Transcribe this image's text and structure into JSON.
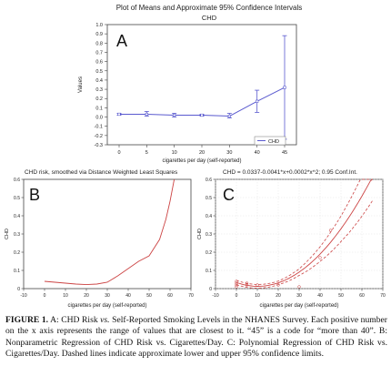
{
  "chart_data": [
    {
      "panel_label": "A",
      "type": "line",
      "title": "Plot of Means and Approximate 95% Confidence Intervals",
      "subtitle": "CHD",
      "xlabel": "cigarettes per day (self-reported)",
      "ylabel": "Values",
      "categories": [
        "0",
        "5",
        "10",
        "20",
        "30",
        "40",
        "45"
      ],
      "series": [
        {
          "name": "CHD",
          "values": [
            0.03,
            0.03,
            0.02,
            0.02,
            0.01,
            0.17,
            0.32
          ],
          "lower": [
            0.02,
            0.01,
            0.0,
            0.01,
            -0.01,
            0.05,
            -0.24
          ],
          "upper": [
            0.04,
            0.06,
            0.04,
            0.03,
            0.04,
            0.29,
            0.88
          ]
        }
      ],
      "ylim": [
        -0.3,
        1.0
      ],
      "yticks": [
        -0.3,
        -0.2,
        -0.1,
        0.0,
        0.1,
        0.2,
        0.3,
        0.4,
        0.5,
        0.6,
        0.7,
        0.8,
        0.9,
        1.0
      ],
      "ytick_labels": [
        "-0.3",
        "-0.2",
        "-0.1",
        "0.0",
        "0.1",
        "0.2",
        "0.3",
        "0.4",
        "0.5",
        "0.6",
        "0.7",
        "0.8",
        "0.9",
        "1.0"
      ],
      "legend": "bottom-right",
      "grid": false,
      "color": "#5a5acf"
    },
    {
      "panel_label": "B",
      "type": "line",
      "title": "CHD risk, smoothed via Distance Weighted Least Squares",
      "xlabel": "cigarettes per day (self-reported)",
      "ylabel": "CHD",
      "xlim": [
        -10,
        70
      ],
      "ylim": [
        0,
        0.6
      ],
      "xticks": [
        -10,
        0,
        10,
        20,
        30,
        40,
        50,
        60,
        70
      ],
      "yticks": [
        0,
        0.1,
        0.2,
        0.3,
        0.4,
        0.5,
        0.6
      ],
      "xtick_labels": [
        "-10",
        "0",
        "10",
        "20",
        "30",
        "40",
        "50",
        "60",
        "70"
      ],
      "ytick_labels": [
        "0",
        "0.1",
        "0.2",
        "0.3",
        "0.4",
        "0.5",
        "0.6"
      ],
      "grid": false,
      "color": "#cc4444",
      "series": [
        {
          "x": [
            0,
            5,
            10,
            15,
            20,
            25,
            30,
            35,
            40,
            45,
            50,
            55,
            58,
            60,
            62
          ],
          "y": [
            0.04,
            0.035,
            0.03,
            0.025,
            0.022,
            0.025,
            0.035,
            0.07,
            0.11,
            0.15,
            0.18,
            0.27,
            0.38,
            0.48,
            0.6
          ]
        }
      ]
    },
    {
      "panel_label": "C",
      "type": "line",
      "title": "CHD = 0.0337-0.0041*x+0.0002*x^2; 0.95 Conf.Int.",
      "xlabel": "cigarettes per day (self-reported)",
      "ylabel": "CHD",
      "xlim": [
        -10,
        70
      ],
      "ylim": [
        0,
        0.6
      ],
      "xticks": [
        -10,
        0,
        10,
        20,
        30,
        40,
        50,
        60,
        70
      ],
      "yticks": [
        0,
        0.1,
        0.2,
        0.3,
        0.4,
        0.5,
        0.6
      ],
      "xtick_labels": [
        "-10",
        "0",
        "10",
        "20",
        "30",
        "40",
        "50",
        "60",
        "70"
      ],
      "ytick_labels": [
        "0",
        "0.1",
        "0.2",
        "0.3",
        "0.4",
        "0.5",
        "0.6"
      ],
      "grid": true,
      "color": "#cc4444",
      "scatter": {
        "x": [
          0,
          0,
          0,
          0,
          5,
          5,
          10,
          20,
          30,
          40,
          45
        ],
        "y": [
          0.03,
          0.02,
          0.04,
          0.01,
          0.03,
          0.02,
          0.02,
          0.02,
          0.01,
          0.17,
          0.32
        ]
      },
      "fit": {
        "x_from": 0,
        "x_to": 65,
        "a": 0.0337,
        "b": -0.0041,
        "c": 0.0002
      },
      "band": {
        "x": [
          0,
          10,
          20,
          30,
          40,
          50,
          60,
          65
        ],
        "half_width": [
          0.012,
          0.01,
          0.01,
          0.018,
          0.04,
          0.07,
          0.11,
          0.13
        ]
      }
    }
  ],
  "caption": {
    "figure": "FIGURE 1.",
    "part1": " A: CHD Risk ",
    "vs": "vs.",
    "part2": " Self-Reported Smoking Levels in the NHANES Survey. Each positive number on the x axis represents the range of values that are closest to it. “45” is a code for “more than 40”. B: Nonparametric Regression of CHD Risk vs. Cigarettes/Day. C: Polynomial Regression of CHD Risk vs. Cigarettes/Day. Dashed lines indicate approximate lower and upper 95% confidence limits."
  }
}
